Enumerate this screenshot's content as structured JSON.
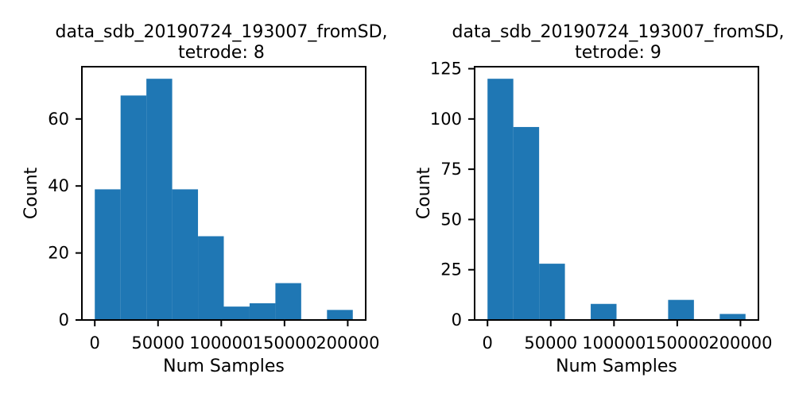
{
  "chart_data": [
    {
      "type": "bar",
      "title": "data_sdb_20190724_193007_fromSD,\ntetrode: 8",
      "xlabel": "Num Samples",
      "ylabel": "Count",
      "bin_edges": [
        0,
        20400,
        40800,
        61200,
        81600,
        102000,
        122400,
        142800,
        163200,
        183600,
        204000
      ],
      "values": [
        39,
        67,
        72,
        39,
        25,
        4,
        5,
        11,
        0,
        3
      ],
      "xlim": [
        -10200,
        214200
      ],
      "ylim": [
        0,
        75.6
      ],
      "xticks": [
        0,
        50000,
        100000,
        150000,
        200000
      ],
      "xtick_labels": [
        "0",
        "50000",
        "100000",
        "150000",
        "200000"
      ],
      "yticks": [
        0,
        20,
        40,
        60
      ],
      "ytick_labels": [
        "0",
        "20",
        "40",
        "60"
      ],
      "color": "#1f77b4"
    },
    {
      "type": "bar",
      "title": "data_sdb_20190724_193007_fromSD,\ntetrode: 9",
      "xlabel": "Num Samples",
      "ylabel": "Count",
      "bin_edges": [
        0,
        20400,
        40800,
        61200,
        81600,
        102000,
        122400,
        142800,
        163200,
        183600,
        204000
      ],
      "values": [
        120,
        96,
        28,
        0,
        8,
        0,
        0,
        10,
        0,
        3
      ],
      "xlim": [
        -10200,
        214200
      ],
      "ylim": [
        0,
        126
      ],
      "xticks": [
        0,
        50000,
        100000,
        150000,
        200000
      ],
      "xtick_labels": [
        "0",
        "50000",
        "100000",
        "150000",
        "200000"
      ],
      "yticks": [
        0,
        25,
        50,
        75,
        100,
        125
      ],
      "ytick_labels": [
        "0",
        "25",
        "50",
        "75",
        "100",
        "125"
      ],
      "color": "#1f77b4"
    }
  ]
}
